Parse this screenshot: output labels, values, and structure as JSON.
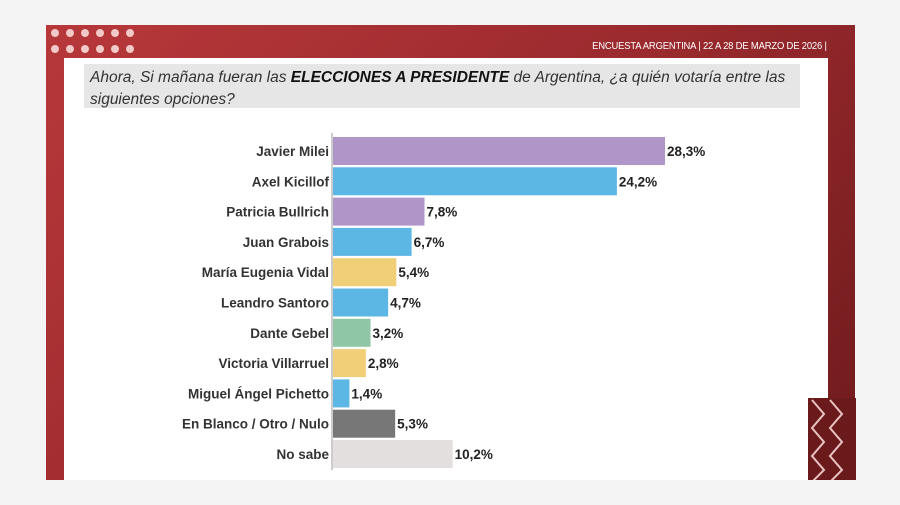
{
  "header": {
    "text": "ENCUESTA ARGENTINA | 22 A 28 DE MARZO DE 2026  |"
  },
  "question": {
    "before": "Ahora, Si mañana fueran las ",
    "bold": "ELECCIONES A PRESIDENTE",
    "after": " de Argentina, ¿a quién votaría entre las siguientes opciones?"
  },
  "colors": {
    "panel": "#9a2a2e",
    "purple": "#b095c8",
    "blue": "#5db7e4",
    "yellow": "#f0cf78",
    "green": "#8fc6a5",
    "gray": "#777777",
    "light": "#e3dfde"
  },
  "chart_data": {
    "type": "bar",
    "orientation": "horizontal",
    "xlim": [
      0,
      30
    ],
    "grid": false,
    "categories": [
      "Javier Milei",
      "Axel Kicillof",
      "Patricia Bullrich",
      "Juan Grabois",
      "María Eugenia Vidal",
      "Leandro Santoro",
      "Dante Gebel",
      "Victoria Villarruel",
      "Miguel Ángel Pichetto",
      "En Blanco / Otro / Nulo",
      "No sabe"
    ],
    "values": [
      28.3,
      24.2,
      7.8,
      6.7,
      5.4,
      4.7,
      3.2,
      2.8,
      1.4,
      5.3,
      10.2
    ],
    "labels": [
      "28,3%",
      "24,2%",
      "7,8%",
      "6,7%",
      "5,4%",
      "4,7%",
      "3,2%",
      "2,8%",
      "1,4%",
      "5,3%",
      "10,2%"
    ],
    "bar_colors": [
      "#b095c8",
      "#5db7e4",
      "#b095c8",
      "#5db7e4",
      "#f0cf78",
      "#5db7e4",
      "#8fc6a5",
      "#f0cf78",
      "#5db7e4",
      "#777777",
      "#e3dfde"
    ]
  }
}
